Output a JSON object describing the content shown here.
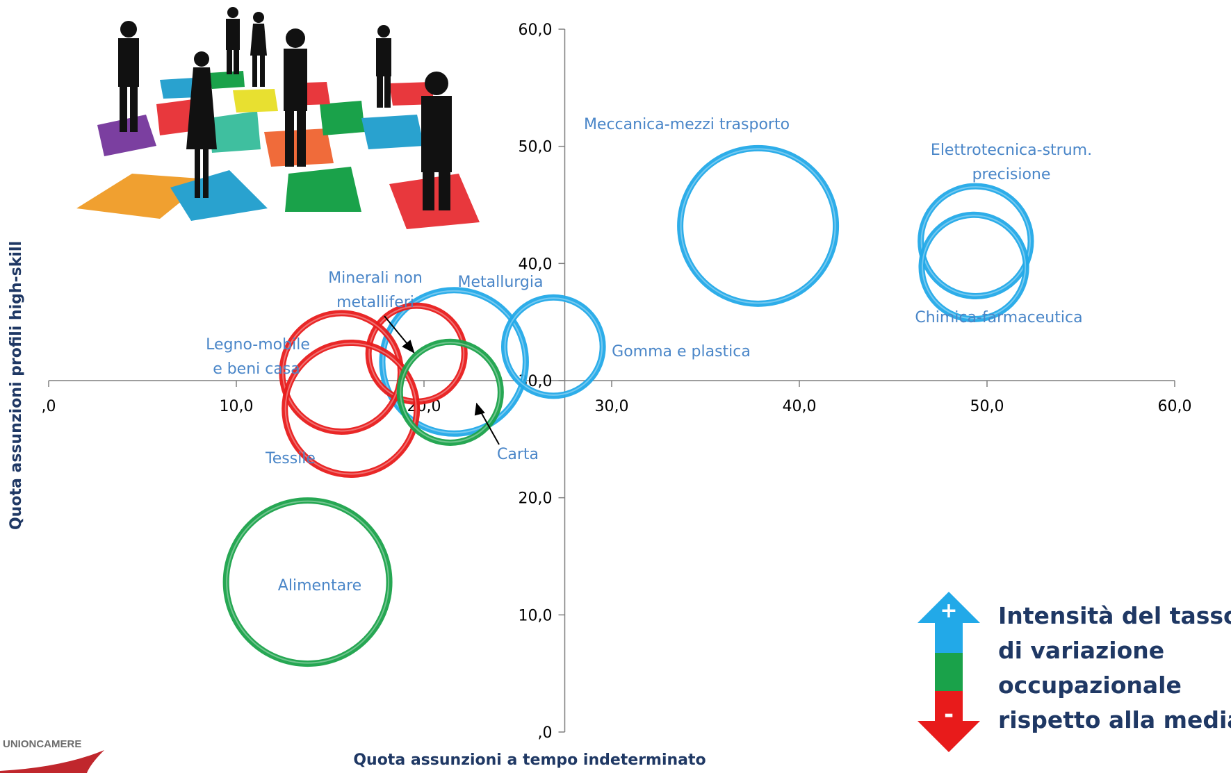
{
  "chart_data": {
    "type": "bubble",
    "xlabel": "Quota assunzioni a tempo indeterminato",
    "ylabel": "Quota assunzioni profili high-skill",
    "xlim": [
      0,
      60
    ],
    "ylim": [
      0,
      60
    ],
    "x_ticks": [
      ",0",
      "10,0",
      "20,0",
      "30,0",
      "40,0",
      "50,0",
      "60,0"
    ],
    "y_ticks": [
      ",0",
      "10,0",
      "20,0",
      "30,0",
      "40,0",
      "50,0",
      "60,0"
    ],
    "axes_cross": {
      "x": 27.5,
      "y": 30
    },
    "grid": false,
    "points": [
      {
        "label": "Meccanica-mezzi trasporto",
        "x": 37.8,
        "y": 43.2,
        "size": 1.0,
        "color": "#22a9e8"
      },
      {
        "label": "Elettrotecnica-strum. precisione",
        "x": 49.4,
        "y": 41.9,
        "size": 0.5,
        "color": "#22a9e8"
      },
      {
        "label": "Chimica-farmaceutica",
        "x": 49.3,
        "y": 39.7,
        "size": 0.45,
        "color": "#22a9e8"
      },
      {
        "label": "Metallurgia",
        "x": 21.6,
        "y": 31.6,
        "size": 0.85,
        "color": "#22a9e8"
      },
      {
        "label": "Gomma e plastica",
        "x": 26.9,
        "y": 32.9,
        "size": 0.4,
        "color": "#22a9e8"
      },
      {
        "label": "Minerali non metalliferi",
        "x": 19.6,
        "y": 32.3,
        "size": 0.38,
        "color": "#e81b1b"
      },
      {
        "label": "Legno-mobile e beni casa",
        "x": 15.6,
        "y": 30.7,
        "size": 0.58,
        "color": "#e81b1b"
      },
      {
        "label": "Tessile",
        "x": 16.1,
        "y": 27.6,
        "size": 0.72,
        "color": "#e81b1b"
      },
      {
        "label": "Carta",
        "x": 21.4,
        "y": 29.0,
        "size": 0.42,
        "color": "#1aa24a"
      },
      {
        "label": "Alimentare",
        "x": 13.8,
        "y": 12.8,
        "size": 1.1,
        "color": "#1aa24a"
      }
    ],
    "legend": {
      "text": [
        "Intensità del tasso",
        "di variazione",
        "occupazionale",
        "rispetto alla media"
      ],
      "plus": "+",
      "minus": "-",
      "colors": [
        "#22a9e8",
        "#1aa24a",
        "#e81b1b"
      ]
    }
  },
  "logo": {
    "text": "UNIONCAMERE",
    "color": "#c0272d"
  }
}
